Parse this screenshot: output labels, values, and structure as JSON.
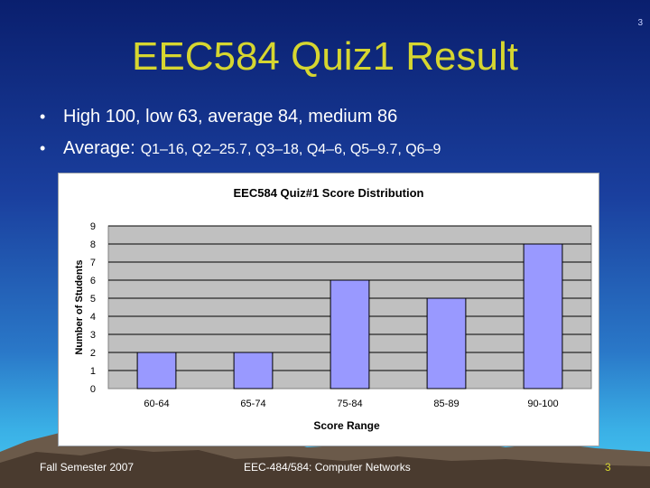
{
  "slide": {
    "page_number_top": "3",
    "title": "EEC584 Quiz1 Result",
    "bullets": [
      {
        "text": "High 100, low 63, average 84, medium 86"
      },
      {
        "lead": "Average:",
        "tail": "Q1–16, Q2–25.7, Q3–18, Q4–6, Q5–9.7, Q6–9"
      }
    ],
    "footer": {
      "left": "Fall Semester 2007",
      "center": "EEC-484/584: Computer Networks",
      "right": "3"
    }
  },
  "chart_data": {
    "type": "bar",
    "title": "EEC584 Quiz#1 Score Distribution",
    "xlabel": "Score Range",
    "ylabel": "Number of Students",
    "categories": [
      "60-64",
      "65-74",
      "75-84",
      "85-89",
      "90-100"
    ],
    "values": [
      2,
      2,
      6,
      5,
      8
    ],
    "ylim": [
      0,
      9
    ],
    "yticks": [
      0,
      1,
      2,
      3,
      4,
      5,
      6,
      7,
      8,
      9
    ],
    "grid": true,
    "bar_color": "#9999ff",
    "plot_bg": "#c0c0c0"
  }
}
